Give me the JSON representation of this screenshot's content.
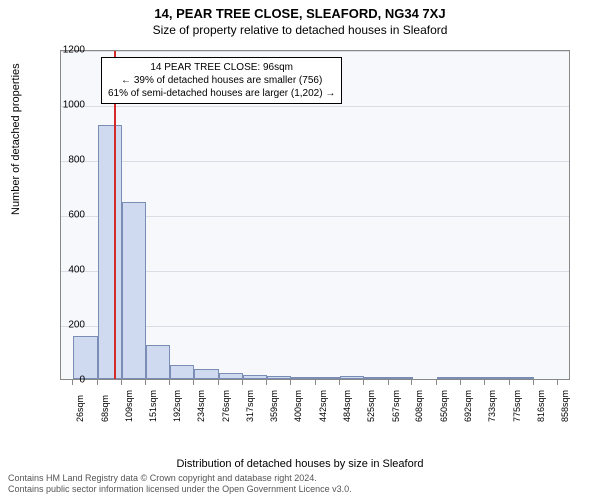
{
  "title": "14, PEAR TREE CLOSE, SLEAFORD, NG34 7XJ",
  "subtitle": "Size of property relative to detached houses in Sleaford",
  "ylabel": "Number of detached properties",
  "xlabel": "Distribution of detached houses by size in Sleaford",
  "chart": {
    "type": "histogram",
    "background_color": "#f6f8fc",
    "grid_color": "#d8dde6",
    "border_color": "#888888",
    "bar_fill": "#cfd9ef",
    "bar_border": "#7a8db5",
    "marker_color": "#d42a2a",
    "ylim": [
      0,
      1200
    ],
    "ytick_step": 200,
    "yticks": [
      0,
      200,
      400,
      600,
      800,
      1000,
      1200
    ],
    "x_min": 5,
    "x_max": 880,
    "marker_x": 96,
    "bars": [
      {
        "x": 26,
        "width": 42,
        "value": 155
      },
      {
        "x": 68,
        "width": 41,
        "value": 925
      },
      {
        "x": 109,
        "width": 42,
        "value": 645
      },
      {
        "x": 151,
        "width": 41,
        "value": 125
      },
      {
        "x": 192,
        "width": 42,
        "value": 50
      },
      {
        "x": 234,
        "width": 42,
        "value": 35
      },
      {
        "x": 276,
        "width": 41,
        "value": 22
      },
      {
        "x": 317,
        "width": 42,
        "value": 15
      },
      {
        "x": 359,
        "width": 41,
        "value": 10
      },
      {
        "x": 400,
        "width": 42,
        "value": 5
      },
      {
        "x": 442,
        "width": 42,
        "value": 4
      },
      {
        "x": 484,
        "width": 41,
        "value": 12
      },
      {
        "x": 525,
        "width": 42,
        "value": 2
      },
      {
        "x": 567,
        "width": 42,
        "value": 2
      },
      {
        "x": 650,
        "width": 42,
        "value": 2
      },
      {
        "x": 692,
        "width": 41,
        "value": 1
      },
      {
        "x": 733,
        "width": 42,
        "value": 1
      },
      {
        "x": 775,
        "width": 41,
        "value": 1
      }
    ],
    "xticks": [
      "26sqm",
      "68sqm",
      "109sqm",
      "151sqm",
      "192sqm",
      "234sqm",
      "276sqm",
      "317sqm",
      "359sqm",
      "400sqm",
      "442sqm",
      "484sqm",
      "525sqm",
      "567sqm",
      "608sqm",
      "650sqm",
      "692sqm",
      "733sqm",
      "775sqm",
      "816sqm",
      "858sqm"
    ],
    "xtick_positions": [
      26,
      68,
      109,
      151,
      192,
      234,
      276,
      317,
      359,
      400,
      442,
      484,
      525,
      567,
      608,
      650,
      692,
      733,
      775,
      816,
      858
    ]
  },
  "annotation": {
    "line1": "14 PEAR TREE CLOSE: 96sqm",
    "line2": "← 39% of detached houses are smaller (756)",
    "line3": "61% of semi-detached houses are larger (1,202) →"
  },
  "footer": {
    "line1": "Contains HM Land Registry data © Crown copyright and database right 2024.",
    "line2": "Contains public sector information licensed under the Open Government Licence v3.0."
  },
  "fontsize": {
    "title": 13,
    "subtitle": 12,
    "axis_label": 11,
    "tick": 10,
    "xtick": 9,
    "annotation": 10,
    "footer": 9
  }
}
